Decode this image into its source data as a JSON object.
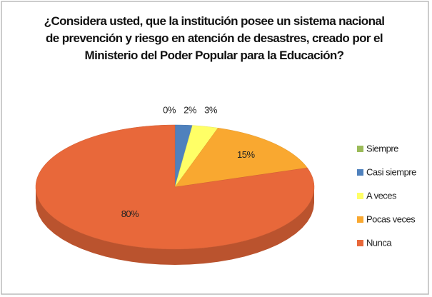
{
  "chart_data": {
    "type": "pie",
    "title": "¿Considera usted, que la institución posee un sistema nacional de prevención  y riesgo en atención de desastres, creado por el Ministerio del Poder Popular para la Educación?",
    "categories": [
      "Siempre",
      "Casi siempre",
      "A veces",
      "Pocas veces",
      "Nunca"
    ],
    "values": [
      0,
      2,
      3,
      15,
      80
    ],
    "value_labels": [
      "0%",
      "2%",
      "3%",
      "15%",
      "80%"
    ],
    "colors": [
      "#9bbb59",
      "#4f81bd",
      "#ffff66",
      "#f9a830",
      "#e8683a"
    ],
    "legend": "right"
  }
}
